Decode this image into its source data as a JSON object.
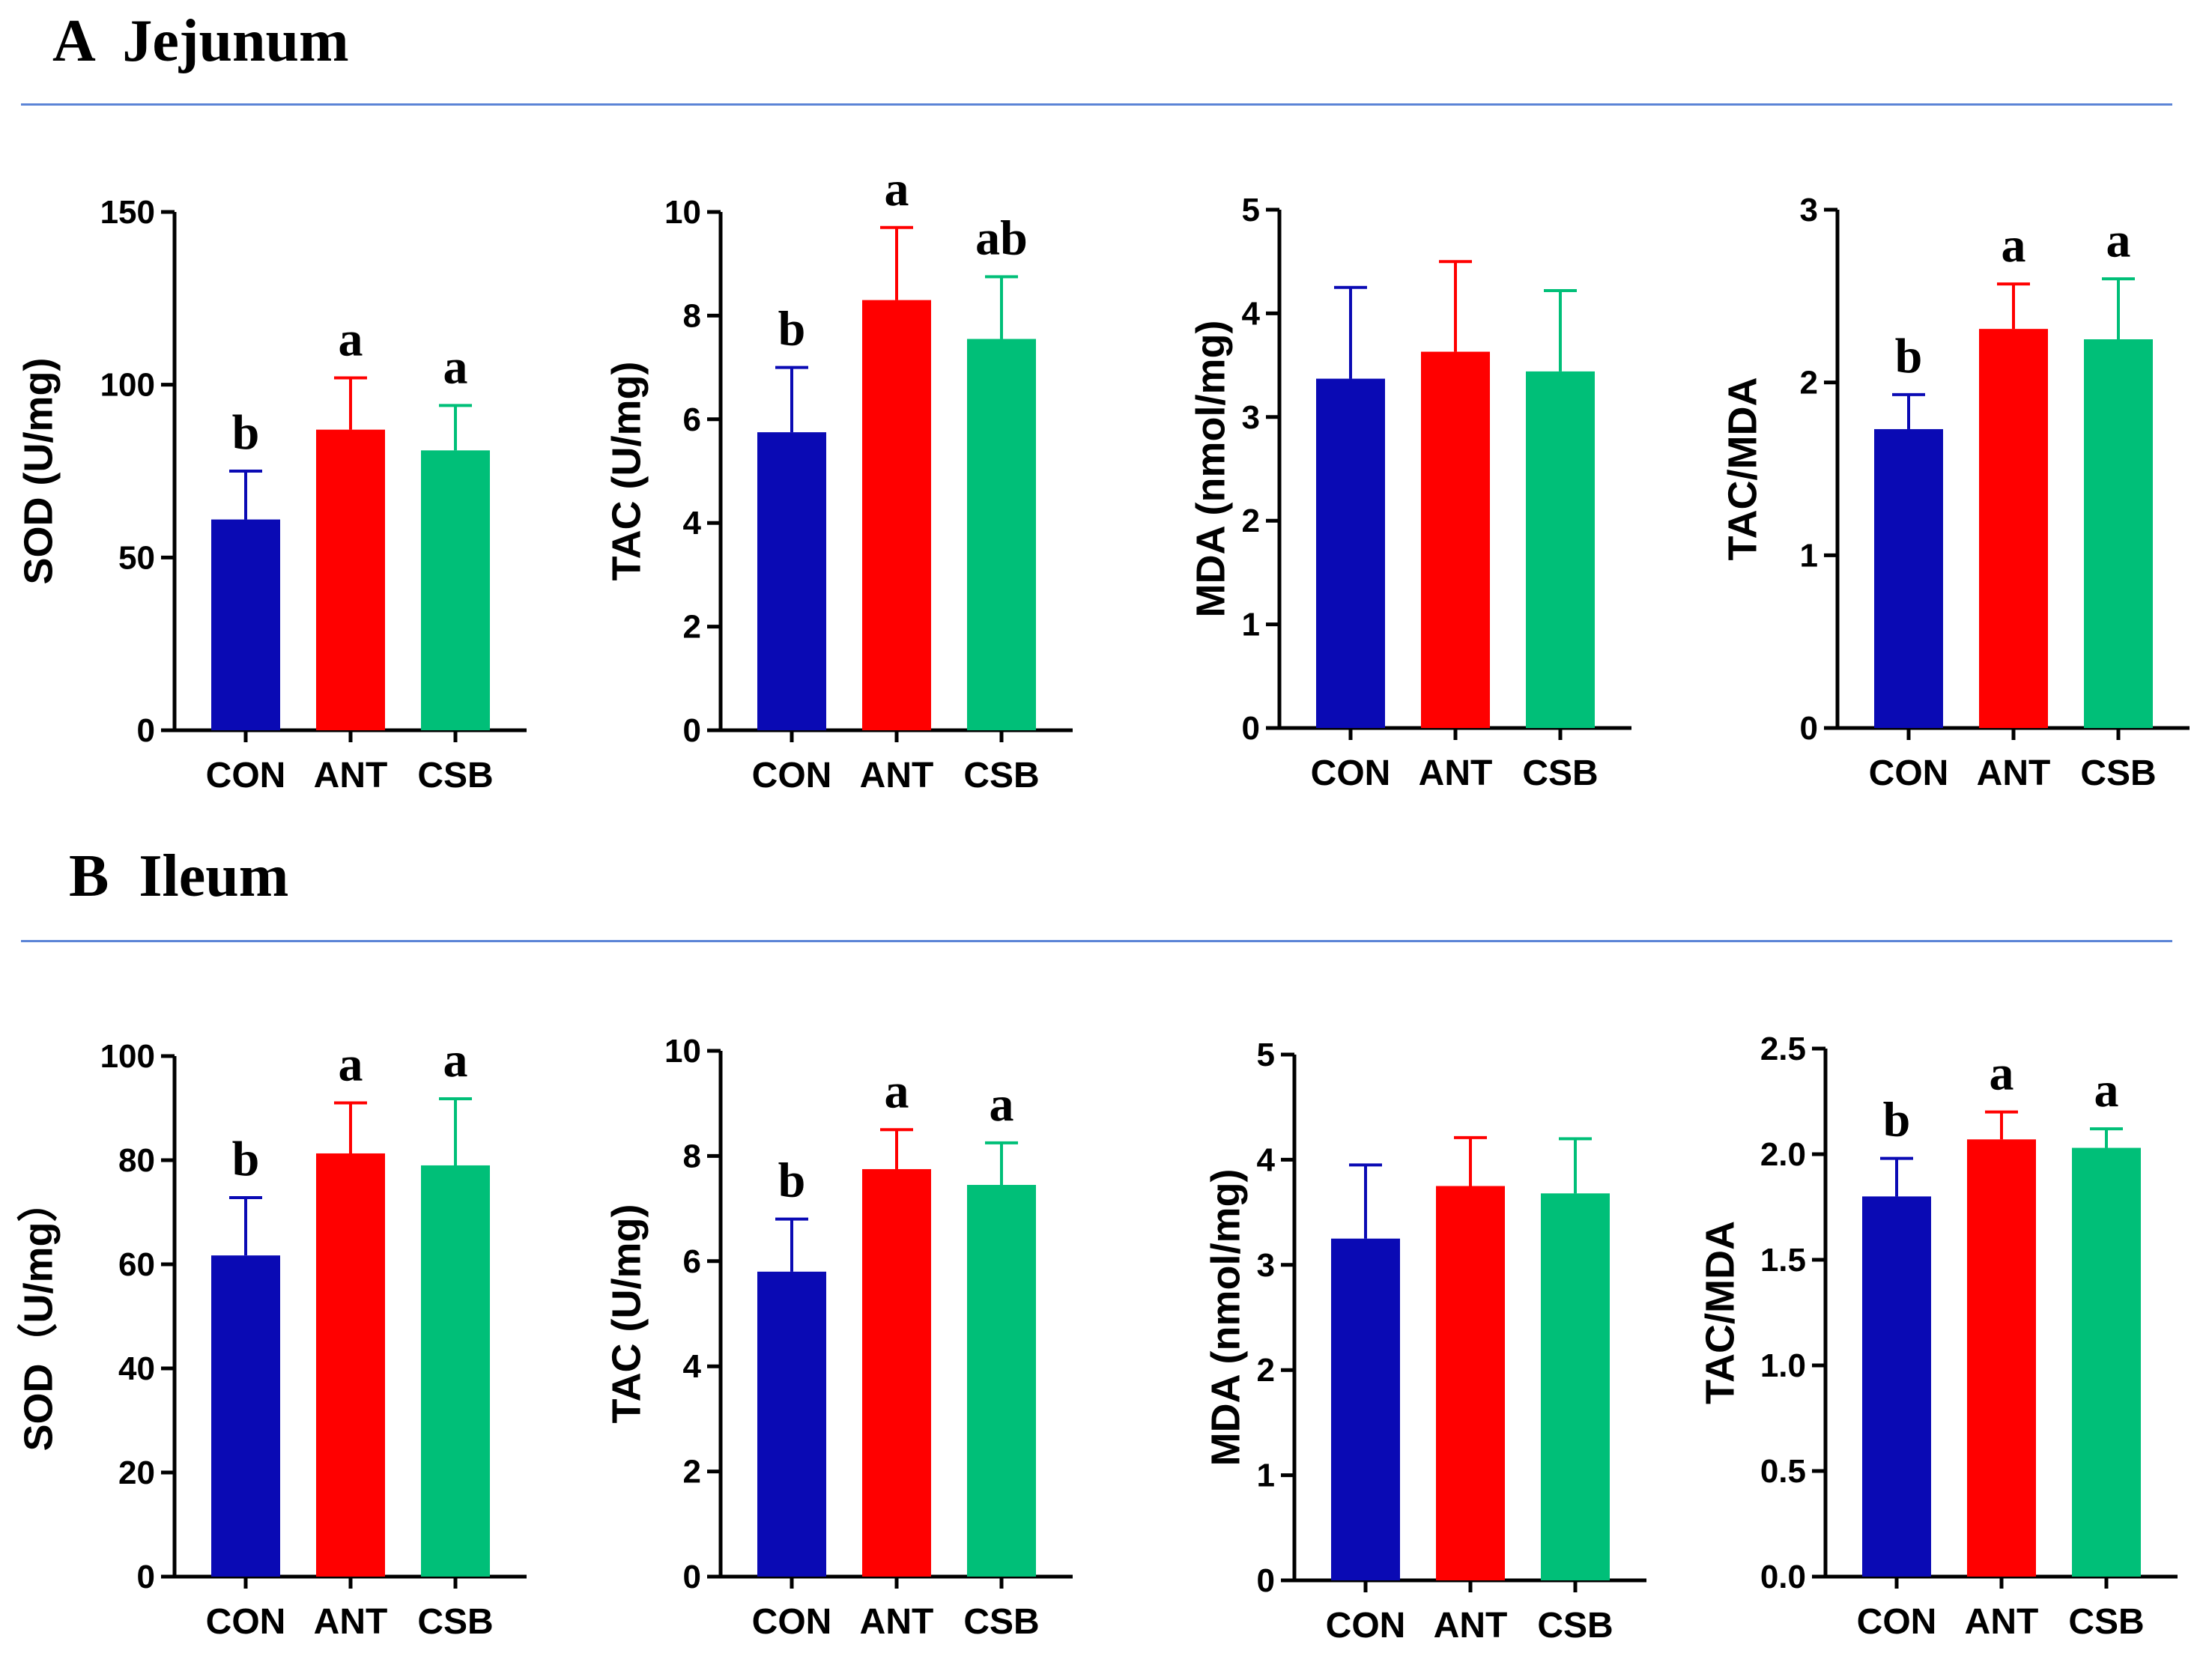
{
  "sections": [
    {
      "title": "A  Jejunum"
    },
    {
      "title": "B  Ileum"
    }
  ],
  "groups": [
    "CON",
    "ANT",
    "CSB"
  ],
  "colors": {
    "CON": "#0a0ab4",
    "ANT": "#ff0000",
    "CSB": "#00bf78",
    "rule": "#5b84d6"
  },
  "chart_data": [
    {
      "id": "jejunum-sod",
      "section": "A  Jejunum",
      "type": "bar",
      "ylabel": "SOD  (U/mg)",
      "ylim": [
        0,
        150
      ],
      "yticks": [
        "0",
        "50",
        "100",
        "150"
      ],
      "categories": [
        "CON",
        "ANT",
        "CSB"
      ],
      "values": [
        61,
        87,
        81
      ],
      "errors": [
        14,
        15,
        13
      ],
      "significance": [
        "b",
        "a",
        "a"
      ]
    },
    {
      "id": "jejunum-tac",
      "section": "A  Jejunum",
      "type": "bar",
      "ylabel": "TAC (U/mg)",
      "ylim": [
        0,
        10
      ],
      "yticks": [
        "0",
        "2",
        "4",
        "6",
        "8",
        "10"
      ],
      "categories": [
        "CON",
        "ANT",
        "CSB"
      ],
      "values": [
        5.75,
        8.3,
        7.55
      ],
      "errors": [
        1.25,
        1.4,
        1.2
      ],
      "significance": [
        "b",
        "a",
        "ab"
      ]
    },
    {
      "id": "jejunum-mda",
      "section": "A  Jejunum",
      "type": "bar",
      "ylabel": "MDA  (nmol/mg)",
      "ylim": [
        0,
        5
      ],
      "yticks": [
        "0",
        "1",
        "2",
        "3",
        "4",
        "5"
      ],
      "categories": [
        "CON",
        "ANT",
        "CSB"
      ],
      "values": [
        3.37,
        3.63,
        3.44
      ],
      "errors": [
        0.88,
        0.87,
        0.78
      ],
      "significance": [
        "",
        "",
        ""
      ]
    },
    {
      "id": "jejunum-tac-mda",
      "section": "A  Jejunum",
      "type": "bar",
      "ylabel": "TAC/MDA",
      "ylim": [
        0,
        3
      ],
      "yticks": [
        "0",
        "1",
        "2",
        "3"
      ],
      "categories": [
        "CON",
        "ANT",
        "CSB"
      ],
      "values": [
        1.73,
        2.31,
        2.25
      ],
      "errors": [
        0.2,
        0.26,
        0.35
      ],
      "significance": [
        "b",
        "a",
        "a"
      ]
    },
    {
      "id": "ileum-sod",
      "section": "B  Ileum",
      "type": "bar",
      "ylabel": "SOD（U/mg）",
      "ylim": [
        0,
        100
      ],
      "yticks": [
        "0",
        "20",
        "40",
        "60",
        "80",
        "100"
      ],
      "categories": [
        "CON",
        "ANT",
        "CSB"
      ],
      "values": [
        61.7,
        81.3,
        79
      ],
      "errors": [
        11.1,
        9.7,
        12.8
      ],
      "significance": [
        "b",
        "a",
        "a"
      ]
    },
    {
      "id": "ileum-tac",
      "section": "B  Ileum",
      "type": "bar",
      "ylabel": "TAC (U/mg)",
      "ylim": [
        0,
        10
      ],
      "yticks": [
        "0",
        "2",
        "4",
        "6",
        "8",
        "10"
      ],
      "categories": [
        "CON",
        "ANT",
        "CSB"
      ],
      "values": [
        5.8,
        7.75,
        7.45
      ],
      "errors": [
        1.0,
        0.75,
        0.8
      ],
      "significance": [
        "b",
        "a",
        "a"
      ]
    },
    {
      "id": "ileum-mda",
      "section": "B  Ileum",
      "type": "bar",
      "ylabel": "MDA  (nmol/mg)",
      "ylim": [
        0,
        5
      ],
      "yticks": [
        "0",
        "1",
        "2",
        "3",
        "4",
        "5"
      ],
      "categories": [
        "CON",
        "ANT",
        "CSB"
      ],
      "values": [
        3.25,
        3.75,
        3.68
      ],
      "errors": [
        0.7,
        0.46,
        0.52
      ],
      "significance": [
        "",
        "",
        ""
      ]
    },
    {
      "id": "ileum-tac-mda",
      "section": "B  Ileum",
      "type": "bar",
      "ylabel": "TAC/MDA",
      "ylim": [
        0,
        2.5
      ],
      "yticks": [
        "0.0",
        "0.5",
        "1.0",
        "1.5",
        "2.0",
        "2.5"
      ],
      "categories": [
        "CON",
        "ANT",
        "CSB"
      ],
      "values": [
        1.8,
        2.07,
        2.03
      ],
      "errors": [
        0.18,
        0.13,
        0.09
      ],
      "significance": [
        "b",
        "a",
        "a"
      ]
    }
  ]
}
